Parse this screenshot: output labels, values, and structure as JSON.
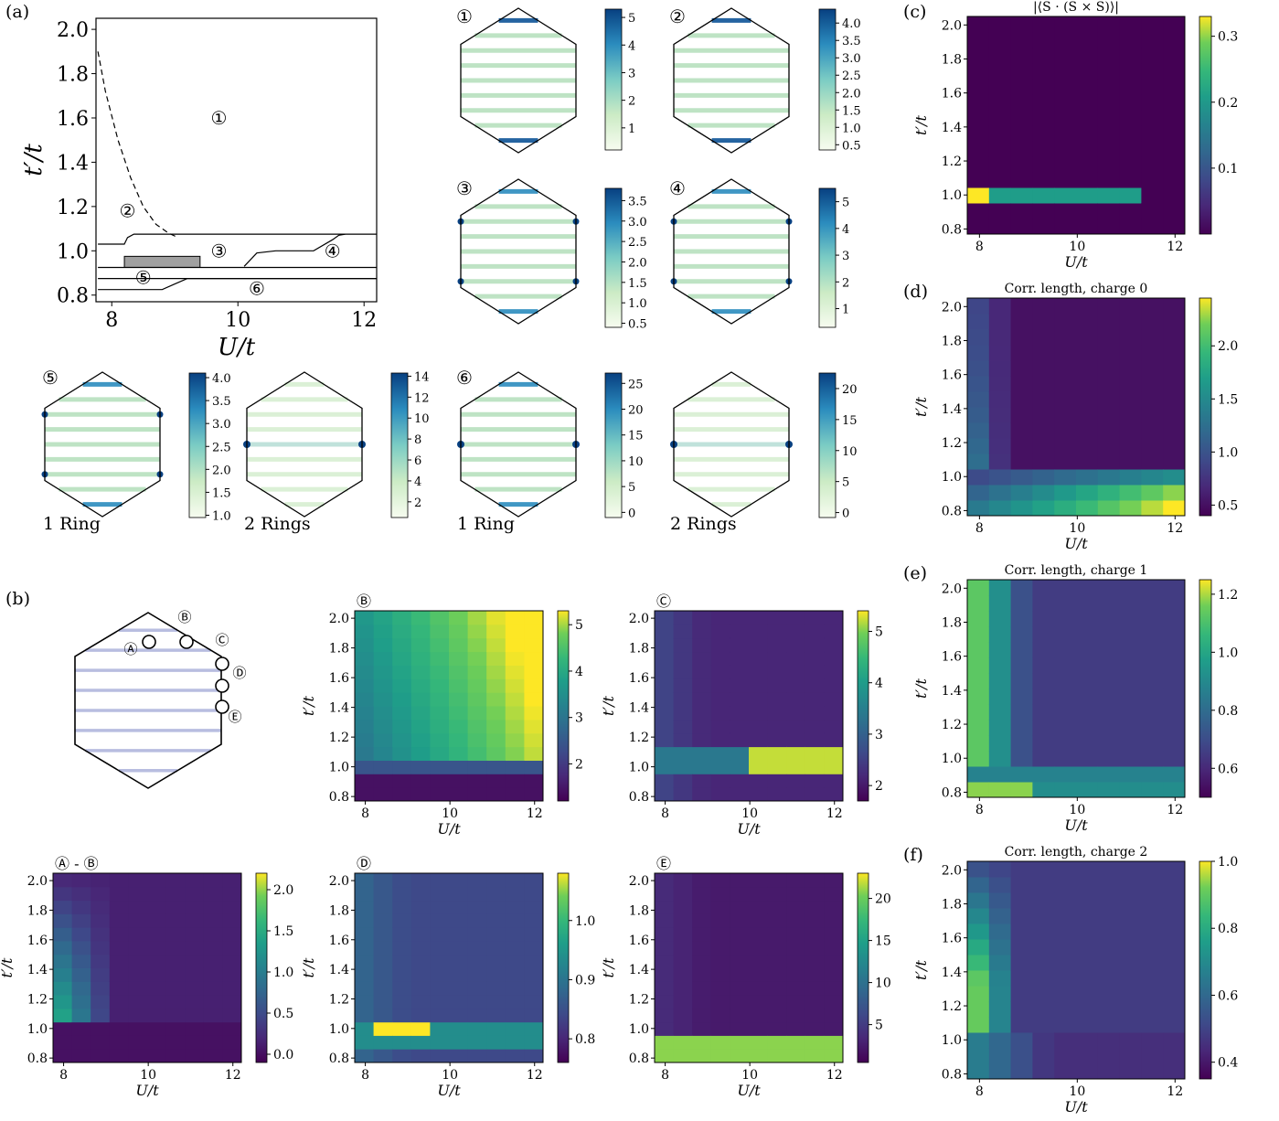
{
  "panel_labels": [
    "(a)",
    "(b)",
    "(c)",
    "(d)",
    "(e)",
    "(f)"
  ],
  "circled": [
    "①",
    "②",
    "③",
    "④",
    "⑤",
    "⑥"
  ],
  "site_labels": [
    "Ⓐ",
    "Ⓑ",
    "Ⓒ",
    "Ⓓ",
    "Ⓔ"
  ],
  "ring_captions": [
    "1 Ring",
    "2 Rings",
    "1 Ring",
    "2 Rings"
  ],
  "diff_label": "Ⓐ - Ⓑ",
  "colors": {
    "viridis_low": "#440154",
    "viridis_mid": "#21918c",
    "viridis_high": "#fde725",
    "gnbu_low": "#f7fcf0",
    "gnbu_high": "#084081"
  },
  "chart_data": [
    {
      "id": "a",
      "type": "line",
      "title": "",
      "xlabel": "U/t",
      "ylabel": "t′/t",
      "xlim": [
        7.75,
        12.2
      ],
      "ylim": [
        0.77,
        2.05
      ],
      "xticks": [
        "8",
        "10",
        "12"
      ],
      "yticks": [
        "0.8",
        "1.0",
        "1.2",
        "1.4",
        "1.6",
        "1.8",
        "2.0"
      ],
      "regions": [
        {
          "name": "①",
          "x": 9.7,
          "y": 1.6
        },
        {
          "name": "②",
          "x": 8.25,
          "y": 1.18
        },
        {
          "name": "③",
          "x": 9.7,
          "y": 1.0
        },
        {
          "name": "④",
          "x": 11.5,
          "y": 1.0
        },
        {
          "name": "⑤",
          "x": 8.5,
          "y": 0.88
        },
        {
          "name": "⑥",
          "x": 10.3,
          "y": 0.83
        }
      ],
      "series": [
        {
          "style": "dashed",
          "x": [
            7.78,
            7.9,
            8.1,
            8.3,
            8.5,
            8.7,
            8.9,
            9.05
          ],
          "y": [
            1.9,
            1.72,
            1.5,
            1.33,
            1.2,
            1.12,
            1.08,
            1.06
          ]
        },
        {
          "style": "solid",
          "x": [
            7.78,
            8.2,
            8.25,
            8.35,
            8.7,
            9.0,
            12.2
          ],
          "y": [
            1.03,
            1.03,
            1.06,
            1.075,
            1.075,
            1.075,
            1.075
          ]
        },
        {
          "style": "solid",
          "x": [
            10.1,
            10.3,
            10.6,
            11.2,
            11.5,
            11.6,
            11.7
          ],
          "y": [
            0.93,
            0.99,
            1.0,
            1.0,
            1.05,
            1.07,
            1.075
          ]
        },
        {
          "style": "solid",
          "x": [
            7.78,
            12.2
          ],
          "y": [
            0.925,
            0.925
          ]
        },
        {
          "style": "solid",
          "x": [
            7.78,
            12.2
          ],
          "y": [
            0.875,
            0.875
          ]
        },
        {
          "style": "solid",
          "x": [
            7.78,
            8.8,
            9.0,
            9.2,
            12.2
          ],
          "y": [
            0.825,
            0.825,
            0.85,
            0.875,
            0.875
          ]
        }
      ],
      "shaded_box": {
        "x": [
          8.2,
          9.4
        ],
        "y": [
          0.925,
          0.975
        ]
      }
    },
    {
      "id": "hex",
      "type": "heatmap",
      "colormap": "GnBu",
      "panels": [
        {
          "label": "①",
          "rings": 1,
          "ticks": [
            "1",
            "2",
            "3",
            "4",
            "5"
          ],
          "range": [
            0.2,
            5.3
          ]
        },
        {
          "label": "②",
          "rings": 1,
          "ticks": [
            "0.5",
            "1.0",
            "1.5",
            "2.0",
            "2.5",
            "3.0",
            "3.5",
            "4.0"
          ],
          "range": [
            0.35,
            4.4
          ]
        },
        {
          "label": "③",
          "rings": 1,
          "ticks": [
            "0.5",
            "1.0",
            "1.5",
            "2.0",
            "2.5",
            "3.0",
            "3.5"
          ],
          "range": [
            0.4,
            3.8
          ]
        },
        {
          "label": "④",
          "rings": 1,
          "ticks": [
            "1",
            "2",
            "3",
            "4",
            "5"
          ],
          "range": [
            0.3,
            5.5
          ]
        },
        {
          "label": "⑤",
          "rings": 1,
          "ticks": [
            "1.0",
            "1.5",
            "2.0",
            "2.5",
            "3.0",
            "3.5",
            "4.0"
          ],
          "range": [
            0.95,
            4.1
          ]
        },
        {
          "label": "",
          "rings": 2,
          "ticks": [
            "2",
            "4",
            "6",
            "8",
            "10",
            "12",
            "14"
          ],
          "range": [
            0.5,
            14.3
          ]
        },
        {
          "label": "⑥",
          "rings": 1,
          "ticks": [
            "0",
            "5",
            "10",
            "15",
            "20",
            "25"
          ],
          "range": [
            -1,
            27
          ]
        },
        {
          "label": "",
          "rings": 2,
          "ticks": [
            "0",
            "5",
            "10",
            "15",
            "20"
          ],
          "range": [
            -0.8,
            22.5
          ]
        }
      ]
    },
    {
      "id": "c",
      "type": "heatmap",
      "title": "|⟨S · (S × S)⟩|",
      "xlabel": "U/t",
      "ylabel": "t′/t",
      "xticks": [
        "8",
        "10",
        "12"
      ],
      "yticks": [
        "0.8",
        "1.0",
        "1.2",
        "1.4",
        "1.6",
        "1.8",
        "2.0"
      ],
      "colorbar_ticks": [
        "0.1",
        "0.2",
        "0.3"
      ],
      "range": [
        0.0,
        0.33
      ],
      "note": "approximately zero everywhere except the band t′/t ≈ 0.95–1.05 at small U/t"
    },
    {
      "id": "d",
      "type": "heatmap",
      "title": "Corr. length, charge 0",
      "xlabel": "U/t",
      "ylabel": "t′/t",
      "colorbar_ticks": [
        "0.5",
        "1.0",
        "1.5",
        "2.0"
      ],
      "range": [
        0.4,
        2.45
      ]
    },
    {
      "id": "e",
      "type": "heatmap",
      "title": "Corr. length, charge 1",
      "xlabel": "U/t",
      "ylabel": "t′/t",
      "colorbar_ticks": [
        "0.6",
        "0.8",
        "1.0",
        "1.2"
      ],
      "range": [
        0.5,
        1.25
      ]
    },
    {
      "id": "f",
      "type": "heatmap",
      "title": "Corr. length, charge 2",
      "xlabel": "U/t",
      "ylabel": "t′/t",
      "colorbar_ticks": [
        "0.4",
        "0.6",
        "0.8",
        "1.0"
      ],
      "range": [
        0.35,
        1.0
      ]
    },
    {
      "id": "B",
      "type": "heatmap",
      "title": "Ⓑ",
      "xlabel": "U/t",
      "ylabel": "t′/t",
      "colorbar_ticks": [
        "2",
        "3",
        "4",
        "5"
      ],
      "range": [
        1.2,
        5.3
      ]
    },
    {
      "id": "C",
      "type": "heatmap",
      "title": "Ⓒ",
      "xlabel": "U/t",
      "ylabel": "t′/t",
      "colorbar_ticks": [
        "2",
        "3",
        "4",
        "5"
      ],
      "range": [
        1.7,
        5.4
      ]
    },
    {
      "id": "AB",
      "type": "heatmap",
      "title": "Ⓐ - Ⓑ",
      "xlabel": "U/t",
      "ylabel": "t′/t",
      "colorbar_ticks": [
        "0.0",
        "0.5",
        "1.0",
        "1.5",
        "2.0"
      ],
      "range": [
        -0.1,
        2.2
      ]
    },
    {
      "id": "D",
      "type": "heatmap",
      "title": "Ⓓ",
      "xlabel": "U/t",
      "ylabel": "t′/t",
      "colorbar_ticks": [
        "0.8",
        "0.9",
        "1.0"
      ],
      "range": [
        0.76,
        1.08
      ]
    },
    {
      "id": "E",
      "type": "heatmap",
      "title": "Ⓔ",
      "xlabel": "U/t",
      "ylabel": "t′/t",
      "colorbar_ticks": [
        "5",
        "10",
        "15",
        "20"
      ],
      "range": [
        0.5,
        23
      ]
    }
  ]
}
